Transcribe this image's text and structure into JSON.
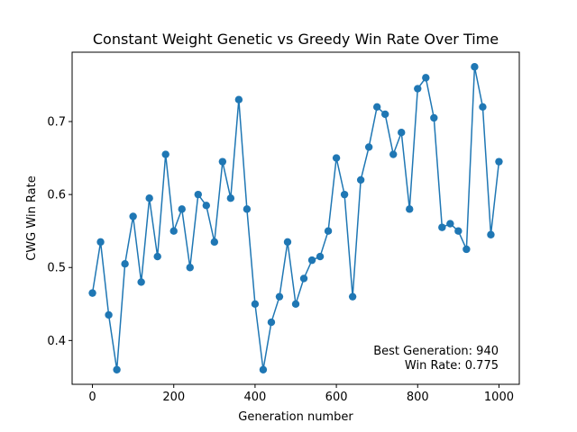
{
  "chart_data": {
    "type": "line",
    "title": "Constant Weight Genetic vs Greedy Win Rate Over Time",
    "xlabel": "Generation number",
    "ylabel": "CWG Win Rate",
    "xlim": [
      -50,
      1050
    ],
    "ylim": [
      0.34,
      0.795
    ],
    "xticks": [
      0,
      200,
      400,
      600,
      800,
      1000
    ],
    "yticks": [
      0.4,
      0.5,
      0.6,
      0.7
    ],
    "xtick_labels": [
      "0",
      "200",
      "400",
      "600",
      "800",
      "1000"
    ],
    "ytick_labels": [
      "0.4",
      "0.5",
      "0.6",
      "0.7"
    ],
    "grid": false,
    "markers": "circle",
    "series_color": "#1f77b4",
    "series": [
      {
        "x": [
          0,
          20,
          40,
          60,
          80,
          100,
          120,
          140,
          160,
          180,
          200,
          220,
          240,
          260,
          280,
          300,
          320,
          340,
          360,
          380,
          400,
          420,
          440,
          460,
          480,
          500,
          520,
          540,
          560,
          580,
          600,
          620,
          640,
          660,
          680,
          700,
          720,
          740,
          760,
          780,
          800,
          820,
          840,
          860,
          880,
          900,
          920,
          940,
          960,
          980,
          1000
        ],
        "values": [
          0.465,
          0.535,
          0.435,
          0.36,
          0.505,
          0.57,
          0.48,
          0.595,
          0.515,
          0.655,
          0.55,
          0.58,
          0.5,
          0.6,
          0.585,
          0.535,
          0.645,
          0.595,
          0.73,
          0.58,
          0.45,
          0.36,
          0.425,
          0.46,
          0.535,
          0.45,
          0.485,
          0.51,
          0.515,
          0.55,
          0.65,
          0.6,
          0.46,
          0.62,
          0.665,
          0.72,
          0.71,
          0.655,
          0.685,
          0.58,
          0.745,
          0.76,
          0.705,
          0.555,
          0.56,
          0.55,
          0.525,
          0.775,
          0.72,
          0.545,
          0.645
        ]
      }
    ],
    "annotation": {
      "line1": "Best Generation: 940",
      "line2": "Win Rate: 0.775",
      "placement": "bottom-right"
    }
  }
}
